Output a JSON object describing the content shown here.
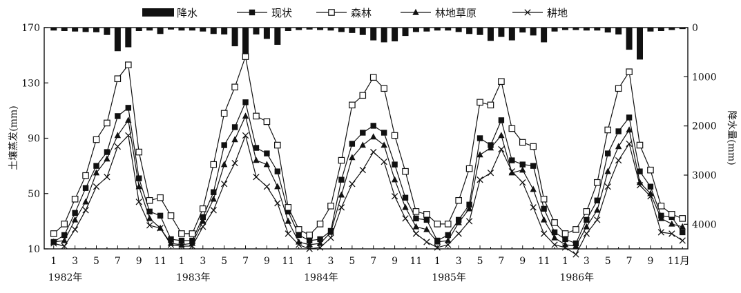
{
  "chart_data": {
    "type": "line",
    "title": "",
    "ylabel_left": "土壤蒸发(mm)",
    "ylabel_right": "降水量(mm)",
    "y_left_lim": [
      10,
      170
    ],
    "y_left_ticks": [
      "10",
      "50",
      "90",
      "130",
      "170"
    ],
    "y_right_lim": [
      0,
      4500
    ],
    "y_right_ticks": [
      "0",
      "1000",
      "2000",
      "3000",
      "4000"
    ],
    "x_tick_labels": [
      "1",
      "3",
      "5",
      "7",
      "9",
      "11",
      "1",
      "3",
      "5",
      "7",
      "9",
      "11",
      "1",
      "3",
      "5",
      "7",
      "9",
      "11",
      "1",
      "3",
      "5",
      "7",
      "9",
      "11",
      "1",
      "3",
      "5",
      "7",
      "9",
      "11月"
    ],
    "year_labels": [
      "1982年",
      "1983年",
      "1984年",
      "1985年",
      "1986年"
    ],
    "legend": [
      "降水",
      "现状",
      "森林",
      "林地草原",
      "耕地"
    ],
    "legend_position": "top",
    "grid": false,
    "bars": {
      "name": "降水",
      "axis": "right",
      "values": [
        60,
        70,
        80,
        90,
        95,
        150,
        480,
        400,
        70,
        60,
        130,
        40,
        60,
        60,
        80,
        130,
        140,
        380,
        560,
        140,
        230,
        350,
        70,
        50,
        40,
        50,
        60,
        90,
        110,
        150,
        260,
        300,
        280,
        170,
        90,
        80,
        60,
        60,
        90,
        130,
        150,
        270,
        190,
        260,
        100,
        160,
        300,
        80,
        50,
        50,
        60,
        60,
        100,
        140,
        450,
        650,
        80,
        70,
        50,
        30
      ]
    },
    "series": [
      {
        "name": "现状",
        "marker": "square-filled",
        "values": [
          15,
          20,
          36,
          54,
          70,
          80,
          106,
          112,
          61,
          37,
          34,
          17,
          16,
          16,
          33,
          51,
          85,
          98,
          116,
          83,
          79,
          66,
          37,
          20,
          16,
          17,
          23,
          60,
          86,
          94,
          99,
          94,
          71,
          47,
          32,
          31,
          16,
          20,
          31,
          42,
          90,
          85,
          103,
          74,
          71,
          70,
          39,
          22,
          17,
          14,
          31,
          45,
          79,
          95,
          105,
          66,
          55,
          34,
          33,
          22
        ]
      },
      {
        "name": "森林",
        "marker": "square-open",
        "values": [
          21,
          28,
          46,
          63,
          89,
          101,
          133,
          143,
          80,
          45,
          47,
          34,
          21,
          21,
          39,
          71,
          108,
          127,
          149,
          106,
          102,
          85,
          40,
          24,
          20,
          28,
          41,
          74,
          114,
          121,
          134,
          126,
          92,
          66,
          37,
          35,
          28,
          28,
          45,
          68,
          116,
          114,
          131,
          97,
          87,
          84,
          46,
          29,
          21,
          24,
          37,
          58,
          96,
          126,
          138,
          85,
          67,
          41,
          35,
          32
        ]
      },
      {
        "name": "林地草原",
        "marker": "triangle-filled",
        "values": [
          15,
          16,
          31,
          44,
          65,
          75,
          92,
          103,
          55,
          32,
          25,
          14,
          13,
          14,
          30,
          46,
          71,
          89,
          106,
          74,
          71,
          55,
          30,
          15,
          13,
          14,
          22,
          49,
          76,
          85,
          91,
          85,
          60,
          40,
          26,
          24,
          15,
          16,
          29,
          39,
          78,
          83,
          92,
          65,
          67,
          53,
          31,
          18,
          13,
          12,
          26,
          38,
          66,
          84,
          96,
          58,
          50,
          32,
          28,
          26
        ]
      },
      {
        "name": "耕地",
        "marker": "cross",
        "values": [
          14,
          12,
          24,
          38,
          55,
          62,
          84,
          92,
          44,
          27,
          25,
          13,
          12,
          12,
          26,
          38,
          57,
          72,
          92,
          62,
          55,
          43,
          21,
          13,
          10,
          11,
          18,
          40,
          57,
          67,
          80,
          73,
          48,
          32,
          21,
          15,
          11,
          13,
          21,
          30,
          60,
          65,
          82,
          66,
          58,
          40,
          21,
          13,
          11,
          6,
          21,
          31,
          55,
          74,
          86,
          56,
          48,
          22,
          21,
          16
        ]
      }
    ]
  }
}
